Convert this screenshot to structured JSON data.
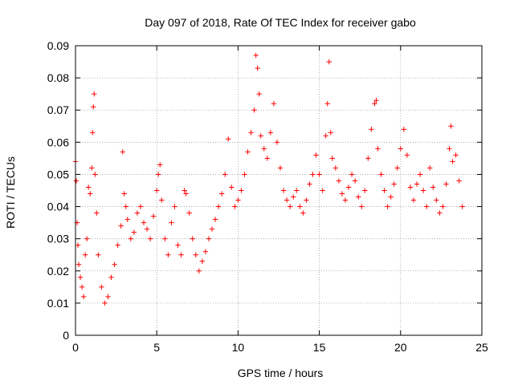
{
  "chart_data": {
    "type": "scatter",
    "title": "Day 097 of 2018, Rate Of TEC Index for receiver gabo",
    "xlabel": "GPS time / hours",
    "ylabel": "ROTI / TECUs",
    "xlim": [
      0,
      25
    ],
    "ylim": [
      0,
      0.09
    ],
    "x_ticks": [
      0,
      5,
      10,
      15,
      20,
      25
    ],
    "y_ticks": [
      0,
      0.01,
      0.02,
      0.03,
      0.04,
      0.05,
      0.06,
      0.07,
      0.08,
      0.09
    ],
    "x_tick_labels": [
      "0",
      "5",
      "10",
      "15",
      "20",
      "25"
    ],
    "y_tick_labels": [
      "0",
      "0.01",
      "0.02",
      "0.03",
      "0.04",
      "0.05",
      "0.06",
      "0.07",
      "0.08",
      "0.09"
    ],
    "grid": true,
    "marker": "+",
    "series": [
      {
        "color": "#ff0000",
        "points": [
          [
            0.0,
            0.054
          ],
          [
            0.05,
            0.048
          ],
          [
            0.1,
            0.035
          ],
          [
            0.15,
            0.028
          ],
          [
            0.2,
            0.022
          ],
          [
            0.3,
            0.018
          ],
          [
            0.4,
            0.015
          ],
          [
            0.5,
            0.012
          ],
          [
            0.6,
            0.025
          ],
          [
            0.7,
            0.03
          ],
          [
            0.8,
            0.046
          ],
          [
            0.9,
            0.044
          ],
          [
            1.0,
            0.052
          ],
          [
            1.05,
            0.063
          ],
          [
            1.1,
            0.071
          ],
          [
            1.15,
            0.075
          ],
          [
            1.2,
            0.05
          ],
          [
            1.3,
            0.038
          ],
          [
            1.4,
            0.025
          ],
          [
            1.6,
            0.015
          ],
          [
            1.8,
            0.01
          ],
          [
            2.0,
            0.012
          ],
          [
            2.2,
            0.018
          ],
          [
            2.4,
            0.022
          ],
          [
            2.6,
            0.028
          ],
          [
            2.8,
            0.034
          ],
          [
            2.9,
            0.057
          ],
          [
            3.0,
            0.044
          ],
          [
            3.1,
            0.04
          ],
          [
            3.2,
            0.036
          ],
          [
            3.4,
            0.03
          ],
          [
            3.6,
            0.032
          ],
          [
            3.8,
            0.038
          ],
          [
            4.0,
            0.04
          ],
          [
            4.2,
            0.035
          ],
          [
            4.4,
            0.033
          ],
          [
            4.6,
            0.03
          ],
          [
            4.8,
            0.037
          ],
          [
            5.0,
            0.045
          ],
          [
            5.1,
            0.05
          ],
          [
            5.2,
            0.053
          ],
          [
            5.3,
            0.042
          ],
          [
            5.5,
            0.03
          ],
          [
            5.7,
            0.025
          ],
          [
            5.9,
            0.035
          ],
          [
            6.1,
            0.04
          ],
          [
            6.3,
            0.028
          ],
          [
            6.5,
            0.025
          ],
          [
            6.7,
            0.045
          ],
          [
            6.8,
            0.044
          ],
          [
            7.0,
            0.038
          ],
          [
            7.2,
            0.03
          ],
          [
            7.4,
            0.025
          ],
          [
            7.6,
            0.02
          ],
          [
            7.8,
            0.023
          ],
          [
            8.0,
            0.026
          ],
          [
            8.2,
            0.03
          ],
          [
            8.4,
            0.033
          ],
          [
            8.6,
            0.036
          ],
          [
            8.8,
            0.04
          ],
          [
            9.0,
            0.044
          ],
          [
            9.2,
            0.05
          ],
          [
            9.4,
            0.061
          ],
          [
            9.6,
            0.046
          ],
          [
            9.8,
            0.04
          ],
          [
            10.0,
            0.042
          ],
          [
            10.2,
            0.045
          ],
          [
            10.4,
            0.05
          ],
          [
            10.6,
            0.057
          ],
          [
            10.8,
            0.063
          ],
          [
            11.0,
            0.07
          ],
          [
            11.1,
            0.087
          ],
          [
            11.2,
            0.083
          ],
          [
            11.3,
            0.075
          ],
          [
            11.4,
            0.062
          ],
          [
            11.6,
            0.058
          ],
          [
            11.8,
            0.055
          ],
          [
            12.0,
            0.063
          ],
          [
            12.2,
            0.072
          ],
          [
            12.4,
            0.06
          ],
          [
            12.6,
            0.052
          ],
          [
            12.8,
            0.045
          ],
          [
            13.0,
            0.042
          ],
          [
            13.2,
            0.04
          ],
          [
            13.4,
            0.043
          ],
          [
            13.6,
            0.045
          ],
          [
            13.8,
            0.04
          ],
          [
            14.0,
            0.038
          ],
          [
            14.2,
            0.042
          ],
          [
            14.4,
            0.047
          ],
          [
            14.6,
            0.05
          ],
          [
            14.8,
            0.056
          ],
          [
            15.0,
            0.05
          ],
          [
            15.2,
            0.045
          ],
          [
            15.4,
            0.062
          ],
          [
            15.5,
            0.072
          ],
          [
            15.6,
            0.085
          ],
          [
            15.7,
            0.063
          ],
          [
            15.8,
            0.055
          ],
          [
            16.0,
            0.052
          ],
          [
            16.2,
            0.048
          ],
          [
            16.4,
            0.044
          ],
          [
            16.6,
            0.042
          ],
          [
            16.8,
            0.046
          ],
          [
            17.0,
            0.05
          ],
          [
            17.2,
            0.048
          ],
          [
            17.4,
            0.043
          ],
          [
            17.6,
            0.04
          ],
          [
            17.8,
            0.045
          ],
          [
            18.0,
            0.055
          ],
          [
            18.2,
            0.064
          ],
          [
            18.4,
            0.072
          ],
          [
            18.5,
            0.073
          ],
          [
            18.6,
            0.058
          ],
          [
            18.8,
            0.05
          ],
          [
            19.0,
            0.045
          ],
          [
            19.2,
            0.04
          ],
          [
            19.4,
            0.043
          ],
          [
            19.6,
            0.047
          ],
          [
            19.8,
            0.052
          ],
          [
            20.0,
            0.058
          ],
          [
            20.2,
            0.064
          ],
          [
            20.4,
            0.056
          ],
          [
            20.6,
            0.046
          ],
          [
            20.8,
            0.042
          ],
          [
            21.0,
            0.047
          ],
          [
            21.2,
            0.05
          ],
          [
            21.4,
            0.045
          ],
          [
            21.6,
            0.04
          ],
          [
            21.8,
            0.052
          ],
          [
            22.0,
            0.046
          ],
          [
            22.2,
            0.042
          ],
          [
            22.4,
            0.038
          ],
          [
            22.6,
            0.04
          ],
          [
            22.8,
            0.047
          ],
          [
            23.0,
            0.058
          ],
          [
            23.1,
            0.065
          ],
          [
            23.2,
            0.054
          ],
          [
            23.4,
            0.056
          ],
          [
            23.6,
            0.048
          ],
          [
            23.8,
            0.04
          ]
        ]
      }
    ]
  }
}
